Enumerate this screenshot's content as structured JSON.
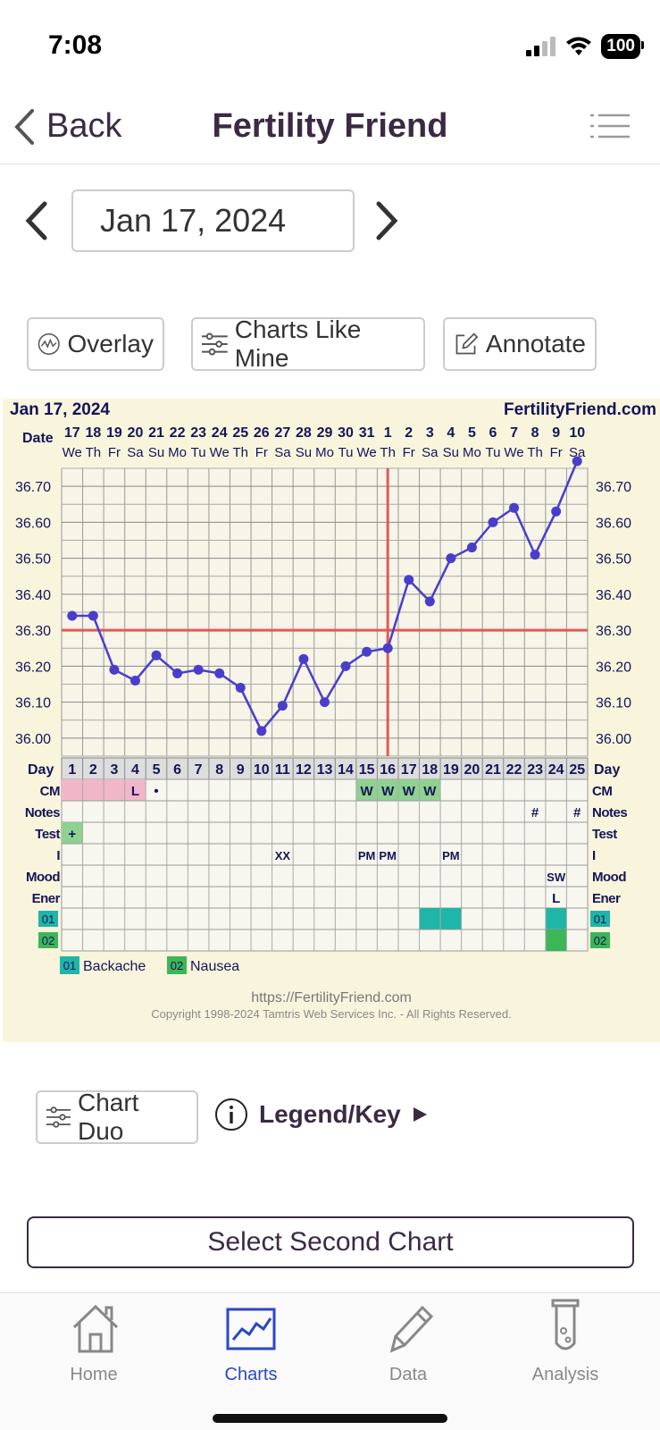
{
  "status": {
    "time": "7:08",
    "battery": "100"
  },
  "nav": {
    "back": "Back",
    "title": "Fertility Friend"
  },
  "date_picker": {
    "value": "Jan 17, 2024"
  },
  "actions": {
    "overlay": "Overlay",
    "charts_like_mine": "Charts Like Mine",
    "annotate": "Annotate"
  },
  "chart_data": {
    "type": "line",
    "header_date": "Jan 17, 2024",
    "site": "FertilityFriend.com",
    "date_label": "Date",
    "dates": [
      "17",
      "18",
      "19",
      "20",
      "21",
      "22",
      "23",
      "24",
      "25",
      "26",
      "27",
      "28",
      "29",
      "30",
      "31",
      "1",
      "2",
      "3",
      "4",
      "5",
      "6",
      "7",
      "8",
      "9",
      "10"
    ],
    "weekdays": [
      "We",
      "Th",
      "Fr",
      "Sa",
      "Su",
      "Mo",
      "Tu",
      "We",
      "Th",
      "Fr",
      "Sa",
      "Su",
      "Mo",
      "Tu",
      "We",
      "Th",
      "Fr",
      "Sa",
      "Su",
      "Mo",
      "Tu",
      "We",
      "Th",
      "Fr",
      "Sa"
    ],
    "day_label": "Day",
    "days": [
      "1",
      "2",
      "3",
      "4",
      "5",
      "6",
      "7",
      "8",
      "9",
      "10",
      "11",
      "12",
      "13",
      "14",
      "15",
      "16",
      "17",
      "18",
      "19",
      "20",
      "21",
      "22",
      "23",
      "24",
      "25"
    ],
    "y_ticks": [
      "36.70",
      "36.60",
      "36.50",
      "36.40",
      "36.30",
      "36.20",
      "36.10",
      "36.00"
    ],
    "ylim": [
      35.95,
      36.75
    ],
    "temperatures": [
      36.34,
      36.34,
      36.19,
      36.16,
      36.23,
      36.18,
      36.19,
      36.18,
      36.14,
      36.02,
      36.09,
      36.22,
      36.1,
      36.2,
      36.24,
      36.25,
      36.44,
      36.38,
      36.5,
      36.53,
      36.6,
      36.64,
      36.51,
      36.63,
      36.77
    ],
    "coverline": 36.3,
    "ovulation_day": 16,
    "line_color": "#4a3dcc",
    "coverline_color": "#e05a5a",
    "rows": {
      "cm": {
        "label": "CM",
        "pink_days": [
          1,
          2,
          3,
          4
        ],
        "green_days": [
          15,
          16,
          17,
          18
        ],
        "marks": {
          "4": "L",
          "5": "•",
          "15": "W",
          "16": "W",
          "17": "W",
          "18": "W"
        }
      },
      "notes": {
        "label": "Notes",
        "marks": {
          "23": "#",
          "25": "#"
        }
      },
      "test": {
        "label": "Test",
        "marks": {
          "1": "+"
        },
        "green_days": [
          1
        ]
      },
      "i": {
        "label": "I",
        "marks": {
          "11": "XX",
          "15": "PM",
          "16": "PM",
          "19": "PM"
        }
      },
      "mood": {
        "label": "Mood",
        "marks": {
          "24": "SW"
        }
      },
      "ener": {
        "label": "Ener",
        "marks": {
          "24": "L"
        }
      },
      "s01": {
        "label": "01",
        "teal_days": [
          18,
          19,
          24
        ]
      },
      "s02": {
        "label": "02",
        "green_days": [
          24
        ]
      }
    },
    "legend": [
      {
        "code": "01",
        "name": "Backache",
        "color": "#1fb5a8"
      },
      {
        "code": "02",
        "name": "Nausea",
        "color": "#3cb657"
      }
    ],
    "footer_url": "https://FertilityFriend.com",
    "copyright": "Copyright 1998-2024 Tamtris Web Services Inc. - All Rights Reserved."
  },
  "bottom": {
    "chart_duo": "Chart Duo",
    "legend_key": "Legend/Key",
    "select_second": "Select Second Chart"
  },
  "tabs": [
    {
      "label": "Home",
      "icon": "house-icon",
      "active": false
    },
    {
      "label": "Charts",
      "icon": "chart-icon",
      "active": true
    },
    {
      "label": "Data",
      "icon": "pencil-icon",
      "active": false
    },
    {
      "label": "Analysis",
      "icon": "test-tube-icon",
      "active": false
    }
  ]
}
